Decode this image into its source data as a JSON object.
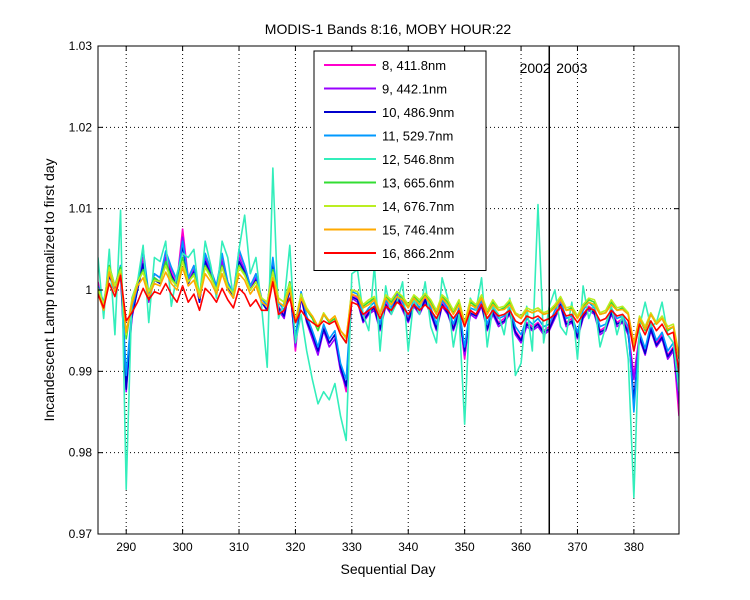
{
  "chart_data": {
    "type": "line",
    "title": "MODIS-1 Bands 8:16, MOBY HOUR:22",
    "xlabel": "Sequential Day",
    "ylabel": "Incandescent Lamp normalized to first day",
    "xlim": [
      285,
      388
    ],
    "ylim": [
      0.97,
      1.03
    ],
    "xticks": [
      290,
      300,
      310,
      320,
      330,
      340,
      350,
      360,
      370,
      380
    ],
    "yticks": [
      0.97,
      0.98,
      0.99,
      1,
      1.01,
      1.02,
      1.03
    ],
    "ytick_labels": [
      "0.97",
      "0.98",
      "0.99",
      "1",
      "1.01",
      "1.02",
      "1.03"
    ],
    "grid": true,
    "legend_position": "top-center",
    "annotations": [
      {
        "text": "2002",
        "x": 362.5,
        "y": 1.0267
      },
      {
        "text": "2003",
        "x": 369,
        "y": 1.0267
      }
    ],
    "vertical_line_x": 365,
    "x": [
      285,
      286,
      287,
      288,
      289,
      290,
      291,
      292,
      293,
      294,
      295,
      296,
      297,
      298,
      299,
      300,
      301,
      302,
      303,
      304,
      305,
      306,
      307,
      308,
      309,
      310,
      311,
      312,
      313,
      314,
      315,
      316,
      317,
      318,
      319,
      320,
      321,
      322,
      323,
      324,
      325,
      326,
      327,
      328,
      329,
      330,
      331,
      332,
      333,
      334,
      335,
      336,
      337,
      338,
      339,
      340,
      341,
      342,
      343,
      344,
      345,
      346,
      347,
      348,
      349,
      350,
      351,
      352,
      353,
      354,
      355,
      356,
      357,
      358,
      359,
      360,
      361,
      362,
      363,
      364,
      365,
      366,
      367,
      368,
      369,
      370,
      371,
      372,
      373,
      374,
      375,
      376,
      377,
      378,
      379,
      380,
      381,
      382,
      383,
      384,
      385,
      386,
      387,
      388
    ],
    "series": [
      {
        "name": "8, 411.8nm",
        "color": "#ff00cc",
        "values": [
          1.001,
          0.9975,
          1.0025,
          1.0005,
          1.003,
          0.9885,
          0.997,
          1.0005,
          1.004,
          0.999,
          1.002,
          1.0015,
          1.0045,
          1.0025,
          1.001,
          1.0075,
          1.0015,
          1.003,
          0.999,
          1.0045,
          1.0025,
          1.0005,
          1.004,
          1.001,
          0.9995,
          1.0045,
          1.003,
          1.0005,
          1.002,
          0.999,
          0.998,
          1.0035,
          0.998,
          0.997,
          1.001,
          0.9925,
          0.9995,
          0.9965,
          0.9945,
          0.9925,
          0.9955,
          0.9935,
          0.9945,
          0.9905,
          0.9875,
          0.9995,
          0.999,
          0.9965,
          0.9975,
          0.998,
          0.9955,
          0.9985,
          0.9975,
          0.9995,
          0.998,
          0.9965,
          0.9985,
          0.9975,
          0.999,
          0.9975,
          0.9955,
          0.9985,
          0.9975,
          0.9955,
          0.9975,
          0.9915,
          0.9975,
          0.997,
          0.9985,
          0.9955,
          0.9975,
          0.996,
          0.9965,
          0.9975,
          0.995,
          0.994,
          0.996,
          0.9955,
          0.996,
          0.995,
          0.9955,
          0.997,
          0.9985,
          0.996,
          0.9965,
          0.9945,
          0.997,
          0.998,
          0.9975,
          0.995,
          0.9955,
          0.9975,
          0.996,
          0.9965,
          0.995,
          0.9895,
          0.9945,
          0.9925,
          0.9955,
          0.9935,
          0.9945,
          0.992,
          0.993,
          0.9845
        ]
      },
      {
        "name": "9, 442.1nm",
        "color": "#9900ff",
        "values": [
          1.0005,
          0.998,
          1.002,
          1.0,
          1.0025,
          0.9875,
          0.9965,
          1.0,
          1.0035,
          0.9985,
          1.0015,
          1.001,
          1.004,
          1.002,
          1.0005,
          1.0065,
          1.001,
          1.0025,
          0.9985,
          1.004,
          1.002,
          1.0,
          1.0035,
          1.0005,
          0.999,
          1.004,
          1.0025,
          1.0,
          1.0015,
          0.9985,
          0.9975,
          1.003,
          0.9975,
          0.9965,
          1.0005,
          0.993,
          0.999,
          0.996,
          0.994,
          0.992,
          0.995,
          0.993,
          0.994,
          0.99,
          0.988,
          0.999,
          0.9985,
          0.996,
          0.997,
          0.9975,
          0.995,
          0.998,
          0.997,
          0.999,
          0.9975,
          0.996,
          0.998,
          0.997,
          0.9985,
          0.997,
          0.995,
          0.998,
          0.997,
          0.995,
          0.997,
          0.992,
          0.997,
          0.9965,
          0.998,
          0.995,
          0.997,
          0.9955,
          0.996,
          0.997,
          0.9945,
          0.9935,
          0.9955,
          0.995,
          0.9955,
          0.9945,
          0.995,
          0.9965,
          0.998,
          0.9955,
          0.996,
          0.994,
          0.9965,
          0.9975,
          0.997,
          0.9945,
          0.995,
          0.997,
          0.9955,
          0.996,
          0.9945,
          0.989,
          0.994,
          0.992,
          0.995,
          0.993,
          0.994,
          0.9915,
          0.9925,
          0.986
        ]
      },
      {
        "name": "10, 486.9nm",
        "color": "#0000cc",
        "values": [
          1.0,
          0.9978,
          1.0018,
          0.9998,
          1.0022,
          0.9878,
          0.9968,
          1.0,
          1.0032,
          0.9988,
          1.0012,
          1.0008,
          1.0035,
          1.0018,
          1.0005,
          1.0055,
          1.0008,
          1.0022,
          0.9985,
          1.0035,
          1.0018,
          1.0,
          1.003,
          1.0005,
          0.999,
          1.0035,
          1.0022,
          1.0,
          1.0012,
          0.9985,
          0.9975,
          1.0028,
          0.9978,
          0.9968,
          1.0002,
          0.9935,
          0.9992,
          0.9962,
          0.9945,
          0.9925,
          0.9952,
          0.9935,
          0.9945,
          0.9905,
          0.9882,
          0.9992,
          0.9988,
          0.9962,
          0.9972,
          0.9978,
          0.9952,
          0.9982,
          0.9972,
          0.9992,
          0.9978,
          0.9962,
          0.9982,
          0.9972,
          0.9988,
          0.9972,
          0.9952,
          0.9982,
          0.9972,
          0.9952,
          0.9972,
          0.9925,
          0.9972,
          0.9968,
          0.9982,
          0.9952,
          0.9972,
          0.9958,
          0.9962,
          0.9972,
          0.9948,
          0.9938,
          0.9958,
          0.9952,
          0.9958,
          0.9948,
          0.9952,
          0.9968,
          0.9982,
          0.9958,
          0.9962,
          0.9942,
          0.9968,
          0.9978,
          0.9972,
          0.9948,
          0.9952,
          0.9972,
          0.9958,
          0.9962,
          0.9948,
          0.9865,
          0.9942,
          0.9922,
          0.9952,
          0.9932,
          0.9942,
          0.9918,
          0.9928,
          0.9875
        ]
      },
      {
        "name": "11, 529.7nm",
        "color": "#0099ff",
        "values": [
          1.0005,
          0.9985,
          1.0025,
          1.0005,
          1.003,
          0.9895,
          0.9975,
          1.0005,
          1.005,
          0.9995,
          1.002,
          1.0015,
          1.0048,
          1.0028,
          1.0012,
          1.006,
          1.0015,
          1.003,
          0.9992,
          1.0045,
          1.0025,
          1.0005,
          1.0045,
          1.001,
          0.9995,
          1.005,
          1.003,
          1.0005,
          1.002,
          0.999,
          0.998,
          1.004,
          0.9985,
          0.9975,
          1.001,
          0.994,
          0.9998,
          0.9968,
          0.995,
          0.993,
          0.9958,
          0.994,
          0.995,
          0.991,
          0.989,
          0.9998,
          0.9995,
          0.9968,
          0.9978,
          0.9985,
          0.9958,
          0.9988,
          0.9978,
          0.9998,
          0.9985,
          0.9968,
          0.9988,
          0.9978,
          0.9995,
          0.9978,
          0.9958,
          0.9988,
          0.9978,
          0.9958,
          0.9978,
          0.993,
          0.9978,
          0.9975,
          0.9988,
          0.9958,
          0.9978,
          0.9965,
          0.9968,
          0.9978,
          0.9955,
          0.9945,
          0.9965,
          0.9958,
          0.9965,
          0.9955,
          0.9958,
          0.9975,
          0.9988,
          0.9965,
          0.9968,
          0.9948,
          0.9975,
          0.9985,
          0.9978,
          0.9955,
          0.9958,
          0.9978,
          0.9965,
          0.9968,
          0.9955,
          0.985,
          0.9948,
          0.9928,
          0.9958,
          0.9938,
          0.9948,
          0.9925,
          0.9935,
          0.9885
        ]
      },
      {
        "name": "12, 546.8nm",
        "color": "#33eebb",
        "values": [
          1.004,
          0.9965,
          1.005,
          0.9945,
          1.0098,
          0.9755,
          0.999,
          1.001,
          1.0055,
          0.996,
          1.004,
          1.0035,
          1.006,
          0.998,
          1.002,
          1.0045,
          1.004,
          1.005,
          0.999,
          1.006,
          1.003,
          0.999,
          1.006,
          1.004,
          0.999,
          1.005,
          1.0092,
          1.002,
          1.004,
          0.998,
          0.9905,
          1.015,
          0.9965,
          0.9985,
          1.0055,
          0.9935,
          0.997,
          0.9925,
          0.989,
          0.986,
          0.9875,
          0.9865,
          0.9885,
          0.9845,
          0.9815,
          1.002,
          1.0025,
          0.997,
          0.995,
          1.003,
          0.9925,
          1.0005,
          0.997,
          0.9985,
          1.001,
          0.9925,
          0.999,
          0.997,
          1.001,
          0.9955,
          0.9935,
          1.0015,
          0.999,
          0.993,
          0.997,
          0.9835,
          0.999,
          0.9975,
          1.0015,
          0.993,
          0.998,
          0.997,
          0.9945,
          0.999,
          0.9895,
          0.991,
          0.998,
          0.9925,
          1.0105,
          0.9935,
          0.998,
          1.0,
          0.9955,
          0.9945,
          0.9985,
          0.9915,
          1.0005,
          0.9965,
          0.9985,
          0.993,
          0.9955,
          0.998,
          0.9945,
          0.997,
          0.9915,
          0.9745,
          0.9955,
          0.9985,
          0.9955,
          0.996,
          0.9985,
          0.9945,
          0.9935,
          0.9875
        ]
      },
      {
        "name": "13, 665.6nm",
        "color": "#33dd33",
        "values": [
          1.0,
          0.998,
          1.003,
          1.0005,
          1.0028,
          0.994,
          0.9985,
          1.001,
          1.0025,
          0.9998,
          1.0015,
          1.001,
          1.0035,
          1.0015,
          1.0005,
          1.004,
          1.001,
          1.002,
          0.9995,
          1.003,
          1.0018,
          1.0,
          1.003,
          1.0005,
          0.9995,
          1.003,
          1.002,
          1.0,
          1.001,
          0.999,
          0.9985,
          1.0025,
          0.999,
          0.9985,
          1.001,
          0.996,
          0.9995,
          0.9975,
          0.9965,
          0.995,
          0.997,
          0.996,
          0.9965,
          0.9945,
          0.9935,
          1.0,
          0.9998,
          0.998,
          0.9985,
          0.999,
          0.997,
          0.9992,
          0.9985,
          0.9998,
          0.999,
          0.998,
          0.9992,
          0.9985,
          0.9995,
          0.9985,
          0.9972,
          0.9992,
          0.9985,
          0.9972,
          0.9985,
          0.9955,
          0.9985,
          0.998,
          0.9992,
          0.9972,
          0.9985,
          0.9975,
          0.9978,
          0.9985,
          0.997,
          0.9965,
          0.9975,
          0.9972,
          0.9975,
          0.997,
          0.9972,
          0.998,
          0.999,
          0.9975,
          0.9978,
          0.9965,
          0.998,
          0.9988,
          0.9985,
          0.997,
          0.9972,
          0.9985,
          0.9975,
          0.9978,
          0.997,
          0.9925,
          0.9965,
          0.995,
          0.997,
          0.9958,
          0.9965,
          0.995,
          0.9955,
          0.9915
        ]
      },
      {
        "name": "14, 676.7nm",
        "color": "#bbee22",
        "values": [
          1.0002,
          0.9982,
          1.0028,
          1.0005,
          1.0025,
          0.9945,
          0.9988,
          1.001,
          1.0022,
          0.9998,
          1.0012,
          1.001,
          1.003,
          1.0012,
          1.0005,
          1.0035,
          1.001,
          1.0018,
          0.9995,
          1.0028,
          1.0015,
          1.0,
          1.0028,
          1.0005,
          0.9995,
          1.0028,
          1.0018,
          1.0,
          1.001,
          0.999,
          0.9985,
          1.0022,
          0.999,
          0.9985,
          1.0008,
          0.9962,
          0.9995,
          0.9978,
          0.9968,
          0.9955,
          0.9972,
          0.9962,
          0.9968,
          0.995,
          0.994,
          1.0,
          0.9998,
          0.9982,
          0.9988,
          0.9992,
          0.9972,
          0.9994,
          0.9988,
          0.9998,
          0.9992,
          0.9982,
          0.9994,
          0.9988,
          0.9996,
          0.9988,
          0.9975,
          0.9994,
          0.9988,
          0.9975,
          0.9988,
          0.996,
          0.9988,
          0.9982,
          0.9994,
          0.9975,
          0.9988,
          0.9978,
          0.998,
          0.9988,
          0.9972,
          0.9968,
          0.9978,
          0.9975,
          0.9978,
          0.9972,
          0.9975,
          0.9982,
          0.9992,
          0.9978,
          0.998,
          0.9968,
          0.9982,
          0.999,
          0.9988,
          0.9972,
          0.9975,
          0.9988,
          0.9978,
          0.998,
          0.9972,
          0.9932,
          0.9968,
          0.9955,
          0.9972,
          0.996,
          0.9968,
          0.9955,
          0.9958,
          0.992
        ]
      },
      {
        "name": "15, 746.4nm",
        "color": "#ffaa00",
        "values": [
          0.9995,
          0.9975,
          1.0022,
          0.9998,
          1.002,
          0.9948,
          0.9982,
          1.0005,
          1.0015,
          0.9992,
          1.0008,
          1.0005,
          1.0022,
          1.0008,
          1.0,
          1.0028,
          1.0005,
          1.0012,
          0.999,
          1.002,
          1.001,
          0.9995,
          1.002,
          1.0,
          0.999,
          1.002,
          1.0012,
          0.9995,
          1.0005,
          0.9985,
          0.998,
          1.0015,
          0.9985,
          0.998,
          1.0002,
          0.996,
          0.999,
          0.9975,
          0.9968,
          0.9955,
          0.997,
          0.9962,
          0.9968,
          0.995,
          0.9942,
          0.9995,
          0.9992,
          0.9978,
          0.9982,
          0.9988,
          0.997,
          0.999,
          0.9982,
          0.9992,
          0.9988,
          0.9978,
          0.999,
          0.9982,
          0.9992,
          0.9982,
          0.997,
          0.999,
          0.9982,
          0.997,
          0.9982,
          0.9958,
          0.9982,
          0.9978,
          0.999,
          0.997,
          0.9982,
          0.9975,
          0.9976,
          0.9982,
          0.997,
          0.9965,
          0.9975,
          0.9972,
          0.9975,
          0.997,
          0.9972,
          0.9978,
          0.9988,
          0.9975,
          0.9976,
          0.9965,
          0.9978,
          0.9985,
          0.9982,
          0.997,
          0.9972,
          0.9982,
          0.9975,
          0.9976,
          0.997,
          0.9935,
          0.9965,
          0.9952,
          0.997,
          0.9958,
          0.9965,
          0.9952,
          0.9955,
          0.9918
        ]
      },
      {
        "name": "16, 866.2nm",
        "color": "#ff0000",
        "values": [
          0.9995,
          0.9978,
          1.0008,
          0.9992,
          1.0018,
          0.9962,
          0.9972,
          0.9985,
          1.0002,
          0.9988,
          0.9998,
          0.9995,
          1.0008,
          0.9995,
          0.9985,
          1.0005,
          0.9985,
          0.9995,
          0.9975,
          1.0002,
          0.9995,
          0.9985,
          1.0002,
          0.9988,
          0.9978,
          1.0002,
          0.9995,
          0.998,
          0.9988,
          0.9975,
          0.9975,
          1.001,
          0.997,
          0.9975,
          0.999,
          0.996,
          0.9975,
          0.9965,
          0.996,
          0.9955,
          0.9962,
          0.9958,
          0.9962,
          0.9945,
          0.9935,
          0.9985,
          0.9982,
          0.997,
          0.9975,
          0.998,
          0.9965,
          0.998,
          0.9975,
          0.9985,
          0.998,
          0.997,
          0.9982,
          0.9975,
          0.9982,
          0.9975,
          0.9965,
          0.998,
          0.9975,
          0.9965,
          0.9975,
          0.9955,
          0.9975,
          0.997,
          0.9982,
          0.9965,
          0.9975,
          0.9968,
          0.997,
          0.9975,
          0.9962,
          0.9958,
          0.9968,
          0.9965,
          0.9968,
          0.9962,
          0.9965,
          0.997,
          0.998,
          0.9968,
          0.997,
          0.996,
          0.997,
          0.9978,
          0.9975,
          0.9962,
          0.9965,
          0.9975,
          0.9968,
          0.997,
          0.9962,
          0.9925,
          0.9958,
          0.9945,
          0.9962,
          0.995,
          0.9958,
          0.9945,
          0.9948,
          0.9898
        ]
      }
    ]
  }
}
